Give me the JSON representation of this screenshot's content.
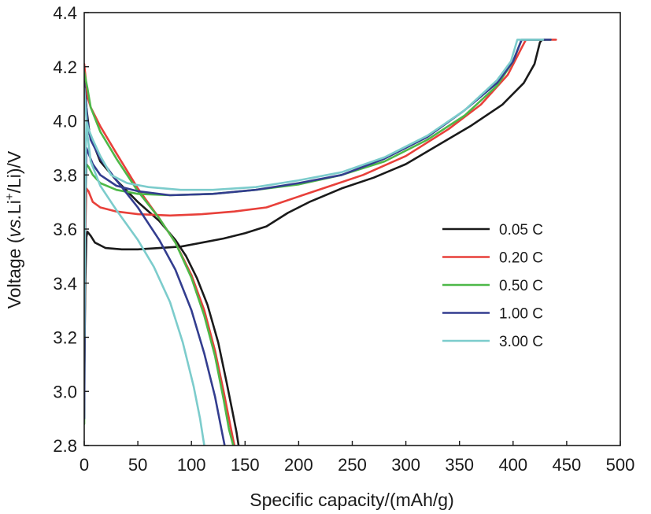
{
  "chart_data": {
    "type": "line",
    "xlabel": "Specific capacity/(mAh/g)",
    "ylabel": {
      "prefix": "Voltage (",
      "italic": "vs.",
      "mid": "Li",
      "sup": "+",
      "suffix": "/Li)/V"
    },
    "xlim": [
      0,
      500
    ],
    "ylim": [
      2.8,
      4.4
    ],
    "xticks": [
      0,
      50,
      100,
      150,
      200,
      250,
      300,
      350,
      400,
      450,
      500
    ],
    "yticks": [
      "2.8",
      "3.0",
      "3.2",
      "3.4",
      "3.6",
      "3.8",
      "4.0",
      "4.2",
      "4.4"
    ],
    "grid": false,
    "legend_position": "right",
    "series": [
      {
        "name": "0.05 C",
        "color": "#1a1a1a",
        "charge": [
          [
            0,
            3.05
          ],
          [
            1,
            3.4
          ],
          [
            2,
            3.57
          ],
          [
            3,
            3.59
          ],
          [
            6,
            3.575
          ],
          [
            10,
            3.55
          ],
          [
            20,
            3.53
          ],
          [
            35,
            3.525
          ],
          [
            50,
            3.525
          ],
          [
            70,
            3.53
          ],
          [
            90,
            3.535
          ],
          [
            110,
            3.55
          ],
          [
            130,
            3.565
          ],
          [
            150,
            3.585
          ],
          [
            170,
            3.61
          ],
          [
            190,
            3.66
          ],
          [
            210,
            3.7
          ],
          [
            240,
            3.75
          ],
          [
            270,
            3.79
          ],
          [
            300,
            3.84
          ],
          [
            330,
            3.91
          ],
          [
            360,
            3.98
          ],
          [
            390,
            4.06
          ],
          [
            410,
            4.14
          ],
          [
            420,
            4.21
          ],
          [
            425,
            4.29
          ],
          [
            427,
            4.3
          ],
          [
            430,
            4.3
          ]
        ],
        "discharge": [
          [
            0,
            4.2
          ],
          [
            2,
            4.05
          ],
          [
            5,
            3.95
          ],
          [
            15,
            3.85
          ],
          [
            30,
            3.78
          ],
          [
            50,
            3.7
          ],
          [
            70,
            3.63
          ],
          [
            85,
            3.56
          ],
          [
            95,
            3.5
          ],
          [
            105,
            3.42
          ],
          [
            115,
            3.32
          ],
          [
            125,
            3.18
          ],
          [
            133,
            3.03
          ],
          [
            138,
            2.93
          ],
          [
            142,
            2.85
          ],
          [
            144,
            2.8
          ]
        ]
      },
      {
        "name": "0.20 C",
        "color": "#e8403a",
        "charge": [
          [
            0,
            3.0
          ],
          [
            1,
            3.6
          ],
          [
            2,
            3.75
          ],
          [
            4,
            3.74
          ],
          [
            8,
            3.7
          ],
          [
            15,
            3.68
          ],
          [
            30,
            3.665
          ],
          [
            50,
            3.655
          ],
          [
            80,
            3.65
          ],
          [
            110,
            3.655
          ],
          [
            140,
            3.665
          ],
          [
            170,
            3.68
          ],
          [
            200,
            3.72
          ],
          [
            230,
            3.76
          ],
          [
            260,
            3.8
          ],
          [
            300,
            3.87
          ],
          [
            340,
            3.97
          ],
          [
            370,
            4.06
          ],
          [
            395,
            4.17
          ],
          [
            408,
            4.27
          ],
          [
            412,
            4.3
          ],
          [
            440,
            4.3
          ]
        ],
        "discharge": [
          [
            0,
            4.21
          ],
          [
            3,
            4.09
          ],
          [
            6,
            4.05
          ],
          [
            15,
            3.98
          ],
          [
            30,
            3.88
          ],
          [
            50,
            3.75
          ],
          [
            70,
            3.64
          ],
          [
            85,
            3.55
          ],
          [
            100,
            3.43
          ],
          [
            112,
            3.3
          ],
          [
            122,
            3.15
          ],
          [
            130,
            3.0
          ],
          [
            136,
            2.88
          ],
          [
            140,
            2.8
          ]
        ]
      },
      {
        "name": "0.50 C",
        "color": "#4db848",
        "charge": [
          [
            0,
            2.88
          ],
          [
            1,
            3.7
          ],
          [
            2,
            3.84
          ],
          [
            4,
            3.83
          ],
          [
            8,
            3.8
          ],
          [
            15,
            3.77
          ],
          [
            30,
            3.745
          ],
          [
            50,
            3.73
          ],
          [
            80,
            3.725
          ],
          [
            120,
            3.73
          ],
          [
            160,
            3.745
          ],
          [
            200,
            3.765
          ],
          [
            240,
            3.8
          ],
          [
            280,
            3.85
          ],
          [
            320,
            3.93
          ],
          [
            355,
            4.02
          ],
          [
            385,
            4.13
          ],
          [
            400,
            4.22
          ],
          [
            408,
            4.3
          ],
          [
            435,
            4.3
          ]
        ],
        "discharge": [
          [
            0,
            4.18
          ],
          [
            3,
            4.12
          ],
          [
            6,
            4.05
          ],
          [
            15,
            3.96
          ],
          [
            30,
            3.86
          ],
          [
            50,
            3.74
          ],
          [
            70,
            3.64
          ],
          [
            85,
            3.55
          ],
          [
            100,
            3.42
          ],
          [
            112,
            3.28
          ],
          [
            122,
            3.13
          ],
          [
            130,
            2.97
          ],
          [
            135,
            2.86
          ],
          [
            139,
            2.8
          ]
        ]
      },
      {
        "name": "1.00 C",
        "color": "#333d8f",
        "charge": [
          [
            0,
            2.9
          ],
          [
            1,
            3.7
          ],
          [
            2,
            3.9
          ],
          [
            4,
            3.88
          ],
          [
            8,
            3.84
          ],
          [
            15,
            3.8
          ],
          [
            30,
            3.76
          ],
          [
            50,
            3.74
          ],
          [
            80,
            3.725
          ],
          [
            120,
            3.73
          ],
          [
            160,
            3.745
          ],
          [
            200,
            3.77
          ],
          [
            240,
            3.8
          ],
          [
            280,
            3.86
          ],
          [
            320,
            3.94
          ],
          [
            355,
            4.04
          ],
          [
            385,
            4.14
          ],
          [
            400,
            4.22
          ],
          [
            408,
            4.3
          ],
          [
            435,
            4.3
          ]
        ],
        "discharge": [
          [
            0,
            4.14
          ],
          [
            3,
            4.0
          ],
          [
            6,
            3.93
          ],
          [
            15,
            3.86
          ],
          [
            30,
            3.78
          ],
          [
            50,
            3.68
          ],
          [
            70,
            3.56
          ],
          [
            85,
            3.45
          ],
          [
            100,
            3.3
          ],
          [
            112,
            3.14
          ],
          [
            122,
            2.98
          ],
          [
            128,
            2.86
          ],
          [
            131,
            2.8
          ]
        ]
      },
      {
        "name": "3.00 C",
        "color": "#7ccccc",
        "charge": [
          [
            0,
            3.2
          ],
          [
            1,
            3.8
          ],
          [
            2,
            4.0
          ],
          [
            4,
            3.97
          ],
          [
            8,
            3.93
          ],
          [
            15,
            3.87
          ],
          [
            25,
            3.8
          ],
          [
            40,
            3.77
          ],
          [
            60,
            3.755
          ],
          [
            90,
            3.745
          ],
          [
            120,
            3.745
          ],
          [
            160,
            3.755
          ],
          [
            200,
            3.78
          ],
          [
            240,
            3.81
          ],
          [
            280,
            3.865
          ],
          [
            320,
            3.945
          ],
          [
            355,
            4.04
          ],
          [
            385,
            4.15
          ],
          [
            398,
            4.22
          ],
          [
            404,
            4.3
          ],
          [
            428,
            4.3
          ]
        ],
        "discharge": [
          [
            0,
            4.12
          ],
          [
            3,
            3.95
          ],
          [
            6,
            3.85
          ],
          [
            15,
            3.76
          ],
          [
            30,
            3.67
          ],
          [
            50,
            3.56
          ],
          [
            65,
            3.46
          ],
          [
            80,
            3.33
          ],
          [
            92,
            3.18
          ],
          [
            102,
            3.02
          ],
          [
            108,
            2.9
          ],
          [
            112,
            2.8
          ]
        ]
      }
    ]
  }
}
